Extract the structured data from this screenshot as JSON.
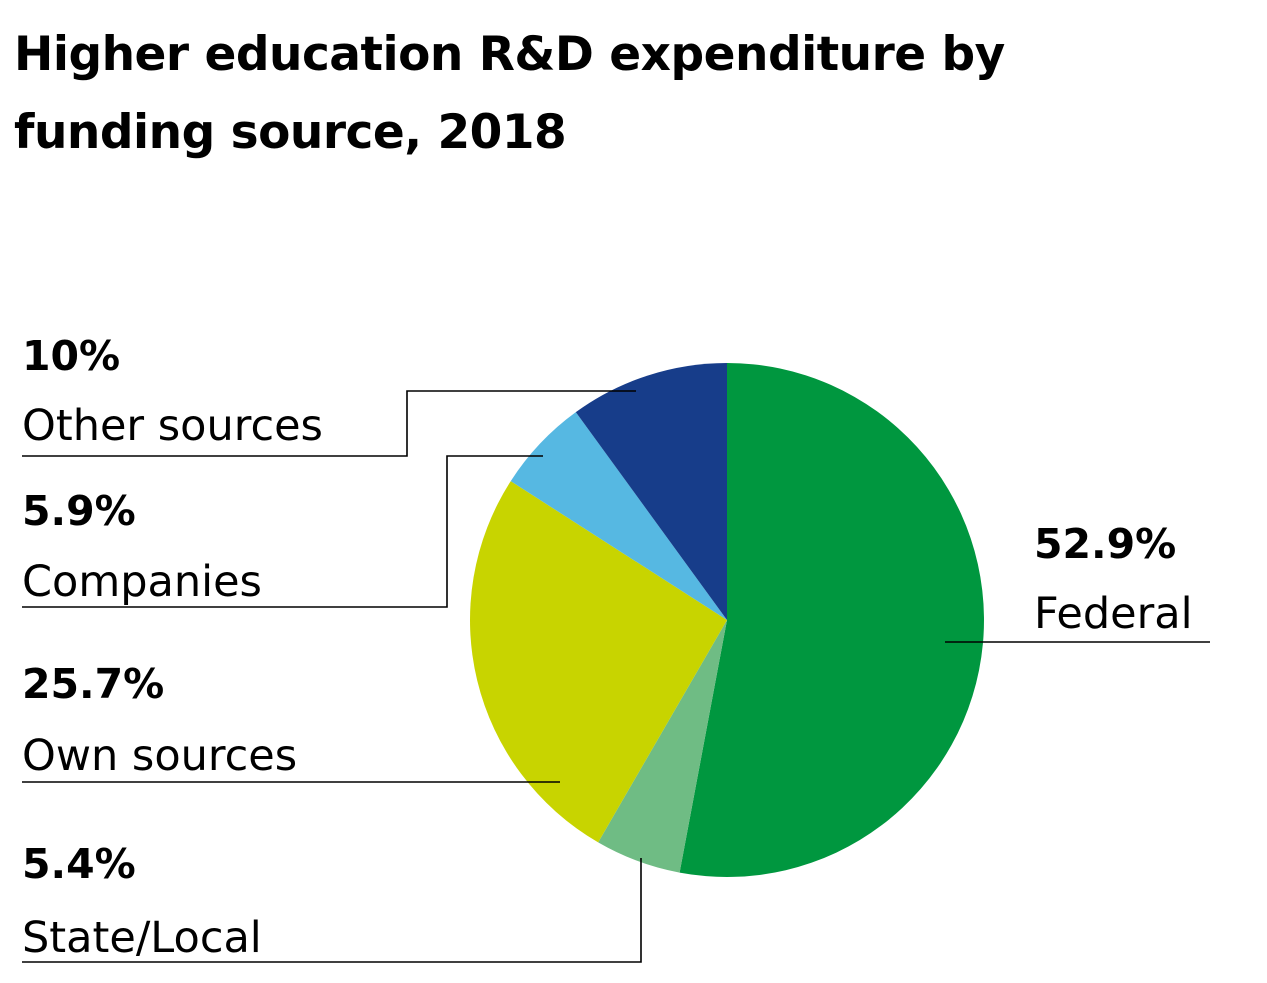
{
  "chart_data": {
    "type": "pie",
    "title_lines": [
      "Higher education R&D expenditure by",
      "funding source, 2018"
    ],
    "start": "12 o'clock",
    "direction": "clockwise",
    "slices": [
      {
        "name": "Federal",
        "value": 52.9,
        "pct_label": "52.9%",
        "color": "#00973F"
      },
      {
        "name": "State/Local",
        "value": 5.4,
        "pct_label": "5.4%",
        "color": "#6FBC84"
      },
      {
        "name": "Own sources",
        "value": 25.7,
        "pct_label": "25.7%",
        "color": "#C8D400"
      },
      {
        "name": "Companies",
        "value": 5.9,
        "pct_label": "5.9%",
        "color": "#56B8E2"
      },
      {
        "name": "Other sources",
        "value": 10,
        "pct_label": "10%",
        "color": "#173D8A"
      }
    ]
  }
}
